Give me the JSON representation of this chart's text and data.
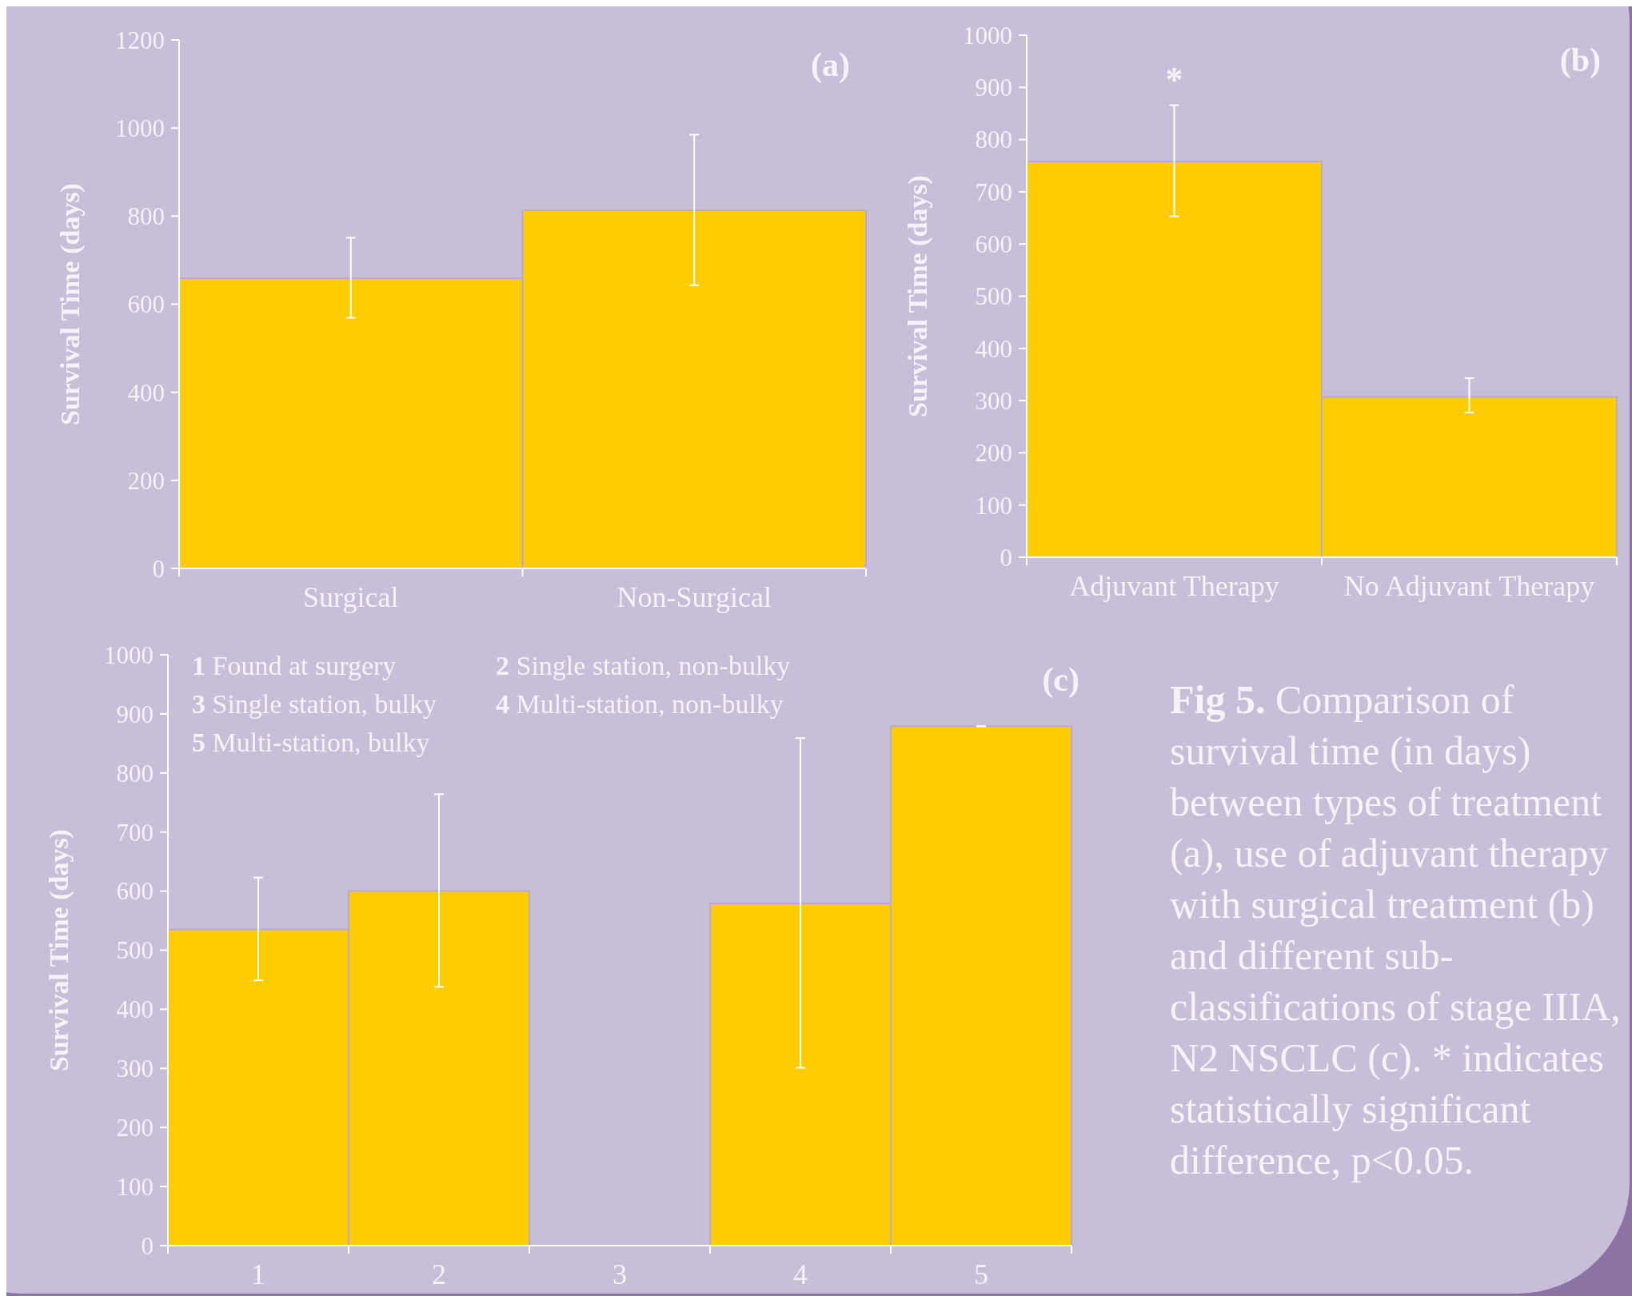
{
  "chart_data": [
    {
      "type": "bar",
      "title": "(a)",
      "ylabel": "Survival Time (days)",
      "categories": [
        "Surgical",
        "Non-Surgical"
      ],
      "values": [
        659,
        813
      ],
      "errors": [
        [
          569,
          751
        ],
        [
          643,
          985
        ]
      ],
      "color": "#ffcc00",
      "ylim": [
        0,
        1200
      ],
      "yticks": [
        0,
        200,
        400,
        600,
        800,
        1000,
        1200
      ],
      "grid": false
    },
    {
      "type": "bar",
      "title": "(b)",
      "ylabel": "Survival Time (days)",
      "categories": [
        "Adjuvant Therapy",
        "No Adjuvant Therapy"
      ],
      "values": [
        758,
        307
      ],
      "errors": [
        [
          653,
          866
        ],
        [
          277,
          343
        ]
      ],
      "color": "#ffcc00",
      "ylim": [
        0,
        1000
      ],
      "yticks": [
        0,
        100,
        200,
        300,
        400,
        500,
        600,
        700,
        800,
        900,
        1000
      ],
      "grid": false,
      "annotations": [
        "*"
      ]
    },
    {
      "type": "bar",
      "title": "(c)",
      "ylabel": "Survival Time (days)",
      "categories": [
        "1",
        "2",
        "3",
        "4",
        "5"
      ],
      "values": [
        535,
        600,
        null,
        579,
        879
      ],
      "errors": [
        [
          449,
          623
        ],
        [
          438,
          764
        ],
        null,
        [
          301,
          859
        ],
        0
      ],
      "color": "#ffcc00",
      "ylim": [
        0,
        1000
      ],
      "yticks": [
        0,
        100,
        200,
        300,
        400,
        500,
        600,
        700,
        800,
        900,
        1000
      ],
      "grid": false,
      "annotations": [
        "1 Found at surgery",
        "2 Single station, non-bulky",
        "3 Single station, bulky",
        "4 Multi-station, non-bulky",
        "5 Multi-station, bulky"
      ]
    },
    {
      "type": "other",
      "title": "Fig 5.",
      "annotations": [
        "Comparison of survival time (in days) between types of treatment (a), use of adjuvant therapy with surgical treatment (b) and different sub-classifications of stage IIIA, N2 NSCLC (c). * indicates statistically significant difference, p<0.05."
      ]
    }
  ]
}
